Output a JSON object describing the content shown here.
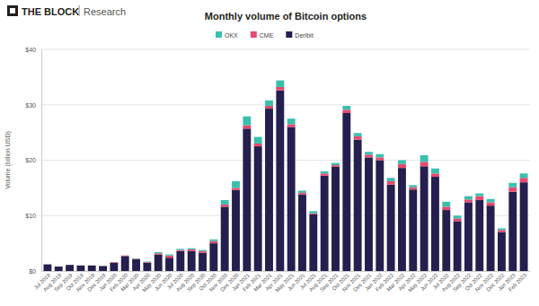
{
  "chart_data": {
    "type": "bar",
    "title": "Monthly volume of Bitcoin options",
    "annotations": [
      "THE BLOCK",
      "Research"
    ],
    "y_label": "Volume (billion USD)",
    "stacked": true,
    "grid": true,
    "legend": "top",
    "categories": [
      "Jul 2019",
      "Aug 2019",
      "Sep 2019",
      "Oct 2019",
      "Nov 2019",
      "Dec 2019",
      "Jan 2020",
      "Feb 2020",
      "Mar 2020",
      "Apr 2020",
      "May 2020",
      "Jun 2020",
      "Jul 2020",
      "Aug 2020",
      "Sep 2020",
      "Oct 2020",
      "Nov 2020",
      "Dec 2020",
      "Jan 2021",
      "Feb 2021",
      "Mar 2021",
      "Apr 2021",
      "May 2021",
      "Jun 2021",
      "Jul 2021",
      "Aug 2021",
      "Sep 2021",
      "Oct 2021",
      "Nov 2021",
      "Dec 2021",
      "Jan 2022",
      "Feb 2022",
      "Mar 2022",
      "Apr 2022",
      "May 2022",
      "Jun 2022",
      "Jul 2022",
      "Aug 2022",
      "Sep 2022",
      "Oct 2022",
      "Nov 2022",
      "Dec 2022",
      "Jan 2023",
      "Feb 2023"
    ],
    "series": [
      {
        "name": "Deribit",
        "color": "#241f4e",
        "values": [
          1.2,
          0.8,
          1.1,
          1.0,
          1.0,
          0.9,
          1.5,
          2.7,
          2.1,
          1.5,
          3.0,
          2.4,
          3.6,
          3.6,
          3.3,
          5.0,
          11.6,
          14.6,
          25.7,
          22.5,
          29.3,
          32.6,
          26.0,
          13.8,
          10.2,
          17.2,
          18.8,
          28.5,
          23.7,
          20.5,
          20.0,
          15.6,
          18.6,
          14.7,
          18.9,
          17.0,
          11.0,
          9.0,
          12.4,
          12.8,
          11.8,
          7.0,
          14.3,
          16.0
        ]
      },
      {
        "name": "CME",
        "color": "#e8496f",
        "values": [
          0,
          0,
          0,
          0,
          0,
          0,
          0.1,
          0.1,
          0.1,
          0.1,
          0.2,
          0.4,
          0.2,
          0.3,
          0.3,
          0.4,
          0.4,
          0.4,
          0.6,
          0.5,
          0.5,
          0.6,
          0.5,
          0.3,
          0.2,
          0.4,
          0.3,
          0.6,
          0.6,
          0.5,
          0.5,
          0.6,
          0.7,
          0.4,
          0.8,
          0.6,
          0.6,
          0.5,
          0.5,
          0.7,
          0.6,
          0.4,
          0.8,
          0.8
        ]
      },
      {
        "name": "OKX",
        "color": "#3bbfad",
        "values": [
          0,
          0,
          0,
          0,
          0,
          0,
          0,
          0,
          0.1,
          0.1,
          0.2,
          0.2,
          0.2,
          0.2,
          0.2,
          0.3,
          0.8,
          1.2,
          1.6,
          1.2,
          1.0,
          1.2,
          1.0,
          0.4,
          0.4,
          0.4,
          0.4,
          0.7,
          0.6,
          0.5,
          0.6,
          0.6,
          0.7,
          0.4,
          1.2,
          0.9,
          0.9,
          0.5,
          0.6,
          0.5,
          0.6,
          0.3,
          0.8,
          0.8
        ]
      }
    ],
    "ylim": [
      0,
      40
    ],
    "yticks": [
      {
        "value": 0,
        "label": "$0"
      },
      {
        "value": 10,
        "label": "$10"
      },
      {
        "value": 20,
        "label": "$20"
      },
      {
        "value": 30,
        "label": "$30"
      },
      {
        "value": 40,
        "label": "$40"
      }
    ]
  }
}
